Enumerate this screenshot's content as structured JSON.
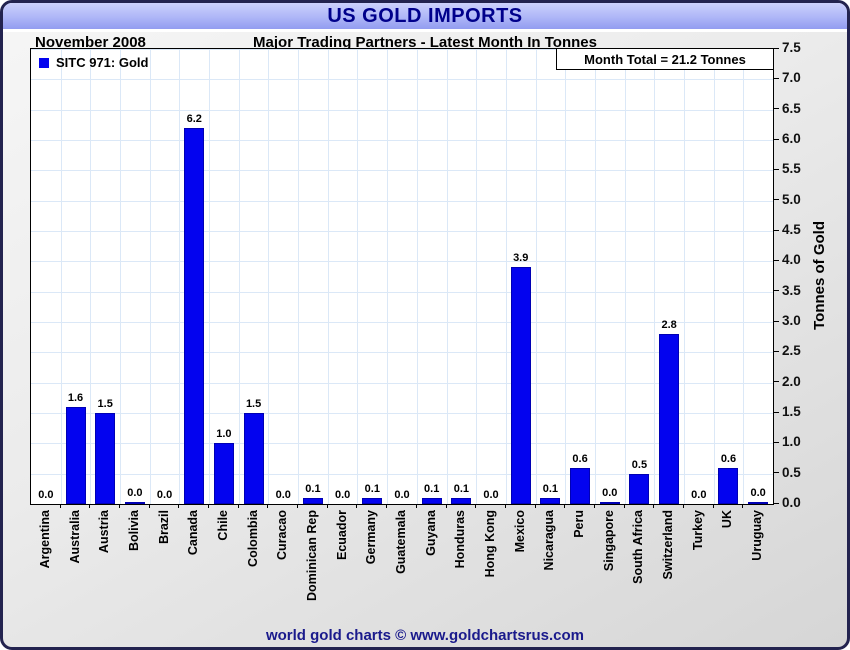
{
  "window": {
    "title": "US GOLD IMPORTS"
  },
  "header": {
    "date_label": "November 2008",
    "subtitle": "Major Trading Partners - Latest Month In Tonnes"
  },
  "legend": {
    "label": "SITC 971: Gold",
    "swatch_color": "#0303ef"
  },
  "annotation": {
    "month_total": "Month Total = 21.2 Tonnes"
  },
  "footer": {
    "credit": "world gold charts © www.goldchartsrus.com"
  },
  "colors": {
    "bar": "#0303ef",
    "bar_border": "#0000b4",
    "grid": "#dbe8f7",
    "title_text": "#00008b",
    "footer_text": "#1a1a8c",
    "card_border": "#23234f"
  },
  "chart_data": {
    "type": "bar",
    "title": "US GOLD IMPORTS",
    "subtitle": "Major Trading Partners - Latest Month In Tonnes",
    "period": "November 2008",
    "series_name": "SITC 971: Gold",
    "month_total_tonnes": 21.2,
    "ylabel": "Tonnes of Gold",
    "xlabel": "",
    "ylim": [
      0,
      7.5
    ],
    "y_step": 0.5,
    "grid": true,
    "legend_position": "top-left",
    "y_tick_labels": [
      "0.0",
      "0.5",
      "1.0",
      "1.5",
      "2.0",
      "2.5",
      "3.0",
      "3.5",
      "4.0",
      "4.5",
      "5.0",
      "5.5",
      "6.0",
      "6.5",
      "7.0",
      "7.5"
    ],
    "categories": [
      "Argentina",
      "Australia",
      "Austria",
      "Bolivia",
      "Brazil",
      "Canada",
      "Chile",
      "Colombia",
      "Curacao",
      "Dominican Rep",
      "Ecuador",
      "Germany",
      "Guatemala",
      "Guyana",
      "Honduras",
      "Hong Kong",
      "Mexico",
      "Nicaragua",
      "Peru",
      "Singapore",
      "South Africa",
      "Switzerland",
      "Turkey",
      "UK",
      "Uruguay"
    ],
    "values": [
      0.0,
      1.6,
      1.5,
      0.0,
      0.0,
      6.2,
      1.0,
      1.5,
      0.0,
      0.1,
      0.0,
      0.1,
      0.0,
      0.1,
      0.1,
      0.0,
      3.9,
      0.1,
      0.6,
      0.0,
      0.5,
      2.8,
      0.0,
      0.6,
      0.0
    ],
    "value_labels": [
      "0.0",
      "1.6",
      "1.5",
      "0.0",
      "0.0",
      "6.2",
      "1.0",
      "1.5",
      "0.0",
      "0.1",
      "0.0",
      "0.1",
      "0.0",
      "0.1",
      "0.1",
      "0.0",
      "3.9",
      "0.1",
      "0.6",
      "0.0",
      "0.5",
      "2.8",
      "0.0",
      "0.6",
      "0.0"
    ],
    "sliver_bar_indices": [
      3,
      19,
      24
    ]
  }
}
